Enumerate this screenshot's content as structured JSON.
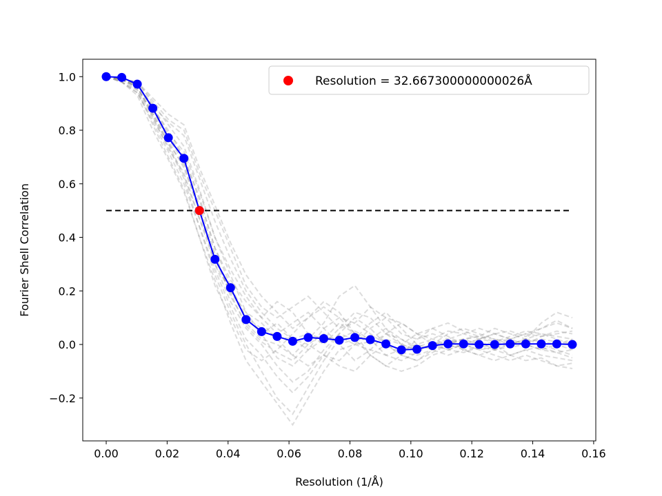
{
  "chart_data": {
    "type": "line",
    "title": "",
    "xlabel": "Resolution (1/Å)",
    "ylabel": "Fourier Shell Correlation",
    "xlim": [
      -0.0077,
      0.1607
    ],
    "ylim": [
      -0.36,
      1.065
    ],
    "x_ticks": [
      0.0,
      0.02,
      0.04,
      0.06,
      0.08,
      0.1,
      0.12,
      0.14,
      0.16
    ],
    "x_tick_labels": [
      "0.00",
      "0.02",
      "0.04",
      "0.06",
      "0.08",
      "0.10",
      "0.12",
      "0.14",
      "0.16"
    ],
    "y_ticks": [
      -0.2,
      0.0,
      0.2,
      0.4,
      0.6,
      0.8,
      1.0
    ],
    "y_tick_labels": [
      "−0.2",
      "0.0",
      "0.2",
      "0.4",
      "0.6",
      "0.8",
      "1.0"
    ],
    "grid": false,
    "legend_position": "top-right",
    "legend": [
      {
        "label": "Resolution = 32.667300000000026Å",
        "marker": "dot",
        "color": "#ff0000"
      }
    ],
    "main_series": {
      "color": "#0000ff",
      "x": [
        0.0,
        0.0051,
        0.0102,
        0.0153,
        0.0204,
        0.0255,
        0.0306,
        0.0357,
        0.0408,
        0.0459,
        0.051,
        0.0561,
        0.0612,
        0.0663,
        0.0714,
        0.0765,
        0.0816,
        0.0867,
        0.0918,
        0.0969,
        0.102,
        0.1071,
        0.1122,
        0.1173,
        0.1224,
        0.1275,
        0.1326,
        0.1377,
        0.1428,
        0.1479,
        0.153
      ],
      "y": [
        1.0,
        0.997,
        0.972,
        0.882,
        0.772,
        0.695,
        0.5,
        0.318,
        0.212,
        0.093,
        0.048,
        0.03,
        0.012,
        0.026,
        0.022,
        0.016,
        0.026,
        0.018,
        0.002,
        -0.02,
        -0.018,
        -0.004,
        0.002,
        0.002,
        0.0,
        0.0,
        0.002,
        0.002,
        0.002,
        0.002,
        0.0
      ]
    },
    "resolution_point": {
      "x": 0.0306,
      "y": 0.5,
      "color": "#ff0000"
    },
    "threshold_line": {
      "y": 0.5,
      "x_range": [
        0.0,
        0.153
      ],
      "color": "#000000",
      "style": "dashed"
    },
    "bootstrap_curves": {
      "color": "#808080",
      "style": "dashed",
      "series": [
        [
          1.0,
          0.99,
          0.96,
          0.86,
          0.76,
          0.66,
          0.5,
          0.3,
          0.2,
          0.1,
          0.06,
          0.03,
          0.02,
          0.04,
          0.02,
          0.03,
          0.0,
          0.01,
          0.02,
          0.0,
          -0.02,
          0.0,
          0.01,
          0.02,
          0.0,
          0.01,
          0.0,
          0.01,
          0.02,
          0.01,
          0.0
        ],
        [
          1.0,
          0.99,
          0.98,
          0.9,
          0.82,
          0.74,
          0.58,
          0.4,
          0.26,
          0.12,
          0.04,
          -0.05,
          -0.08,
          -0.02,
          0.06,
          0.1,
          0.08,
          0.04,
          0.0,
          -0.03,
          -0.04,
          -0.02,
          0.0,
          0.02,
          0.03,
          0.02,
          0.01,
          0.0,
          0.03,
          0.05,
          0.04
        ],
        [
          1.0,
          0.98,
          0.94,
          0.84,
          0.74,
          0.62,
          0.44,
          0.26,
          0.12,
          0.0,
          -0.1,
          -0.2,
          -0.26,
          -0.16,
          -0.06,
          0.02,
          0.05,
          0.02,
          -0.04,
          -0.06,
          -0.03,
          0.0,
          -0.02,
          -0.03,
          -0.01,
          0.0,
          -0.04,
          -0.06,
          -0.05,
          -0.08,
          -0.07
        ],
        [
          1.0,
          0.99,
          0.97,
          0.88,
          0.8,
          0.7,
          0.55,
          0.36,
          0.24,
          0.16,
          0.1,
          0.16,
          0.12,
          0.04,
          0.0,
          0.06,
          0.12,
          0.1,
          0.04,
          0.0,
          0.04,
          0.06,
          0.03,
          0.0,
          0.02,
          0.04,
          0.05,
          0.03,
          0.06,
          0.09,
          0.06
        ],
        [
          1.0,
          0.99,
          0.95,
          0.82,
          0.7,
          0.58,
          0.4,
          0.22,
          0.1,
          -0.02,
          -0.06,
          -0.02,
          0.04,
          0.1,
          0.16,
          0.12,
          0.04,
          -0.04,
          -0.08,
          -0.04,
          0.02,
          0.04,
          0.02,
          -0.02,
          -0.04,
          -0.02,
          0.0,
          0.02,
          0.0,
          -0.02,
          -0.04
        ],
        [
          1.0,
          0.99,
          0.97,
          0.89,
          0.83,
          0.78,
          0.62,
          0.46,
          0.32,
          0.2,
          0.12,
          0.06,
          0.02,
          0.0,
          -0.04,
          -0.06,
          0.0,
          0.06,
          0.1,
          0.08,
          0.04,
          0.0,
          -0.02,
          0.0,
          0.02,
          0.04,
          0.02,
          0.0,
          -0.02,
          0.0,
          0.02
        ],
        [
          1.0,
          0.98,
          0.95,
          0.85,
          0.73,
          0.64,
          0.47,
          0.3,
          0.16,
          0.06,
          0.0,
          -0.08,
          -0.14,
          -0.1,
          -0.02,
          0.04,
          0.02,
          -0.04,
          -0.08,
          -0.1,
          -0.08,
          -0.04,
          -0.02,
          0.0,
          -0.02,
          -0.04,
          -0.06,
          -0.04,
          -0.06,
          -0.08,
          -0.09
        ],
        [
          1.0,
          0.99,
          0.98,
          0.91,
          0.84,
          0.8,
          0.64,
          0.5,
          0.36,
          0.22,
          0.14,
          0.1,
          0.14,
          0.18,
          0.12,
          0.06,
          0.08,
          0.14,
          0.1,
          0.04,
          0.02,
          0.06,
          0.08,
          0.05,
          0.03,
          0.06,
          0.04,
          0.02,
          0.08,
          0.12,
          0.1
        ],
        [
          1.0,
          0.99,
          0.96,
          0.87,
          0.77,
          0.68,
          0.52,
          0.34,
          0.18,
          0.08,
          0.02,
          0.0,
          -0.04,
          0.02,
          0.08,
          0.18,
          0.22,
          0.14,
          0.06,
          0.0,
          -0.02,
          0.0,
          0.04,
          0.06,
          0.04,
          0.02,
          0.0,
          0.02,
          0.04,
          0.02,
          0.0
        ],
        [
          1.0,
          0.98,
          0.93,
          0.8,
          0.69,
          0.57,
          0.4,
          0.24,
          0.08,
          -0.06,
          -0.14,
          -0.22,
          -0.3,
          -0.2,
          -0.1,
          -0.02,
          0.0,
          -0.02,
          -0.04,
          -0.02,
          0.0,
          -0.02,
          -0.04,
          -0.02,
          -0.01,
          -0.02,
          -0.04,
          -0.02,
          -0.01,
          -0.03,
          -0.05
        ],
        [
          1.0,
          0.99,
          0.97,
          0.89,
          0.79,
          0.72,
          0.57,
          0.4,
          0.28,
          0.18,
          0.1,
          0.04,
          0.08,
          0.12,
          0.06,
          0.0,
          0.02,
          0.08,
          0.12,
          0.06,
          0.0,
          0.02,
          0.05,
          0.04,
          0.02,
          0.01,
          0.03,
          0.05,
          0.04,
          0.03,
          0.02
        ],
        [
          1.0,
          0.99,
          0.96,
          0.86,
          0.75,
          0.67,
          0.5,
          0.32,
          0.2,
          0.12,
          0.08,
          0.02,
          -0.04,
          -0.08,
          -0.04,
          0.04,
          0.1,
          0.06,
          0.0,
          -0.04,
          -0.06,
          -0.02,
          0.02,
          0.0,
          -0.02,
          -0.01,
          0.0,
          0.02,
          0.01,
          0.0,
          -0.02
        ],
        [
          1.0,
          0.99,
          0.98,
          0.92,
          0.86,
          0.82,
          0.66,
          0.52,
          0.38,
          0.26,
          0.18,
          0.12,
          0.06,
          0.1,
          0.14,
          0.1,
          0.04,
          0.02,
          0.06,
          0.02,
          -0.02,
          0.0,
          0.02,
          0.04,
          0.06,
          0.04,
          0.02,
          0.04,
          0.06,
          0.08,
          0.06
        ],
        [
          1.0,
          0.98,
          0.94,
          0.83,
          0.72,
          0.6,
          0.44,
          0.28,
          0.14,
          0.02,
          -0.04,
          -0.12,
          -0.18,
          -0.12,
          -0.04,
          -0.08,
          -0.1,
          -0.04,
          0.0,
          -0.04,
          -0.06,
          -0.03,
          0.0,
          -0.02,
          -0.04,
          -0.06,
          -0.04,
          -0.02,
          -0.04,
          -0.05,
          -0.06
        ],
        [
          1.0,
          0.99,
          0.97,
          0.88,
          0.78,
          0.7,
          0.54,
          0.36,
          0.22,
          0.1,
          0.04,
          0.08,
          0.02,
          -0.02,
          0.02,
          0.08,
          0.04,
          0.0,
          0.04,
          0.08,
          0.04,
          0.02,
          0.0,
          0.02,
          0.03,
          0.01,
          0.02,
          0.04,
          0.03,
          0.04,
          0.05
        ],
        [
          1.0,
          0.99,
          0.96,
          0.85,
          0.75,
          0.63,
          0.47,
          0.33,
          0.19,
          0.07,
          0.01,
          -0.03,
          -0.06,
          0.0,
          0.04,
          0.0,
          -0.06,
          -0.02,
          0.04,
          0.02,
          -0.01,
          0.01,
          -0.01,
          0.0,
          0.01,
          -0.02,
          -0.01,
          0.0,
          -0.02,
          -0.03,
          -0.02
        ]
      ]
    }
  }
}
